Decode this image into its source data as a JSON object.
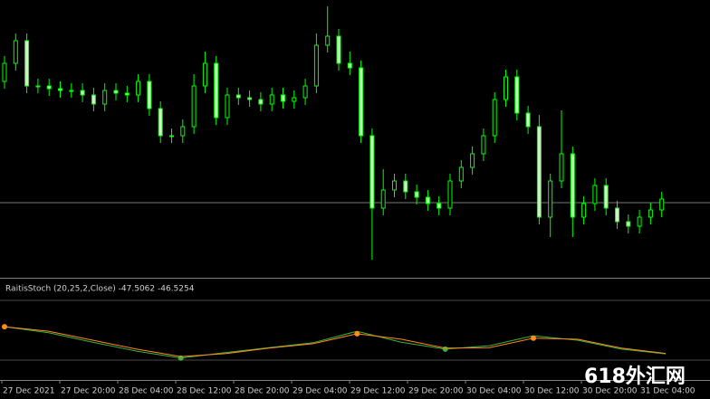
{
  "chart_data": [
    {
      "type": "candlestick",
      "open": [
        217,
        237,
        262,
        212,
        212,
        209,
        207,
        207,
        202,
        192,
        207,
        204,
        202,
        217,
        187,
        157,
        157,
        167,
        212,
        237,
        177,
        202,
        199,
        197,
        192,
        202,
        195,
        199,
        212,
        257,
        267,
        237,
        232,
        157,
        77,
        97,
        107,
        95,
        89,
        82,
        77,
        107,
        122,
        137,
        157,
        197,
        222,
        182,
        167,
        67,
        107,
        137,
        67,
        82,
        102,
        77,
        62,
        57,
        67,
        75
      ],
      "high": [
        245,
        270,
        270,
        220,
        220,
        217,
        215,
        215,
        210,
        215,
        215,
        212,
        225,
        225,
        195,
        165,
        175,
        225,
        250,
        245,
        210,
        210,
        207,
        205,
        210,
        210,
        207,
        220,
        270,
        300,
        275,
        250,
        240,
        165,
        120,
        115,
        115,
        103,
        97,
        90,
        115,
        130,
        145,
        165,
        205,
        230,
        230,
        190,
        180,
        115,
        185,
        145,
        90,
        110,
        110,
        85,
        70,
        75,
        83,
        95
      ],
      "low": [
        209,
        229,
        204,
        204,
        201,
        199,
        199,
        194,
        184,
        184,
        196,
        194,
        194,
        179,
        149,
        149,
        149,
        159,
        204,
        169,
        169,
        191,
        189,
        184,
        184,
        187,
        187,
        191,
        204,
        249,
        229,
        224,
        149,
        20,
        69,
        89,
        87,
        81,
        74,
        69,
        69,
        99,
        114,
        129,
        149,
        189,
        174,
        159,
        59,
        45,
        99,
        45,
        59,
        74,
        69,
        54,
        49,
        49,
        59,
        67
      ],
      "close": [
        237,
        262,
        212,
        212,
        209,
        207,
        207,
        202,
        192,
        207,
        204,
        202,
        217,
        187,
        157,
        157,
        167,
        212,
        237,
        177,
        202,
        199,
        197,
        192,
        202,
        195,
        199,
        212,
        257,
        267,
        237,
        232,
        157,
        77,
        97,
        107,
        95,
        89,
        82,
        77,
        107,
        122,
        137,
        157,
        197,
        222,
        182,
        167,
        67,
        107,
        137,
        67,
        82,
        102,
        77,
        62,
        57,
        67,
        75,
        87
      ],
      "ylim": [
        0,
        307
      ],
      "hline": 83,
      "up_color": "#00ff00",
      "down_color": "#c8f5c0",
      "categories": [
        "27 Dec 2021",
        "27 Dec 20:00",
        "28 Dec 04:00",
        "28 Dec 12:00",
        "28 Dec 20:00",
        "29 Dec 04:00",
        "29 Dec 12:00",
        "29 Dec 20:00",
        "30 Dec 04:00",
        "30 Dec 12:00",
        "30 Dec 20:00",
        "31 Dec 04:00"
      ]
    },
    {
      "type": "line",
      "title": "RaitisStoch (20,25,2,Close) -47.5062 -46.5254",
      "ylim": [
        -100,
        100
      ],
      "levels": [
        60,
        -60
      ],
      "series": [
        {
          "color": "#3cb43c",
          "values": [
            7,
            -5,
            -24,
            -42,
            -56,
            -45,
            -35,
            -25,
            -2,
            -24,
            -38,
            -31,
            -11,
            -20,
            -38,
            -47.5062
          ],
          "dots": [
            4,
            10
          ]
        },
        {
          "color": "#ff8c1a",
          "values": [
            7,
            -2,
            -20,
            -38,
            -53,
            -47,
            -36,
            -27,
            -7,
            -18,
            -36,
            -35,
            -16,
            -18,
            -36,
            -46.5254
          ],
          "dots": [
            0,
            8,
            12
          ]
        }
      ]
    }
  ],
  "watermark": "618外汇网"
}
